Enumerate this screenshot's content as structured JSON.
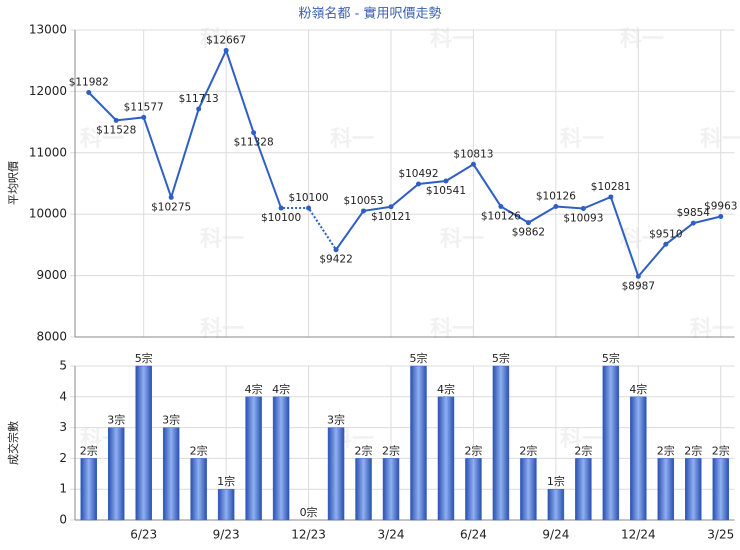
{
  "chart_data": [
    {
      "type": "line",
      "title": "粉嶺名都 - 實用呎價走勢",
      "y_label": "平均呎價",
      "watermark": "科一",
      "categories": [
        null,
        null,
        "6/23",
        null,
        null,
        "9/23",
        null,
        null,
        "12/23",
        null,
        null,
        "3/24",
        null,
        null,
        "6/24",
        null,
        null,
        "9/24",
        null,
        null,
        "12/24",
        null,
        null,
        "3/25"
      ],
      "values": [
        11982,
        11528,
        11577,
        10275,
        11713,
        12667,
        11328,
        10100,
        10100,
        9422,
        10053,
        10121,
        10492,
        10541,
        10813,
        10126,
        9862,
        10126,
        10093,
        10281,
        8987,
        9510,
        9854,
        9963
      ],
      "value_labels": [
        "$11982",
        "$11528",
        "$11577",
        "$10275",
        "$11713",
        "$12667",
        "$11328",
        "$10100",
        "$10100",
        "$9422",
        "$10053",
        "$10121",
        "$10492",
        "$10541",
        "$10813",
        "$10126",
        "$9862",
        "$10126",
        "$10093",
        "$10281",
        "$8987",
        "$9510",
        "$9854",
        "$9963"
      ],
      "color": "#2f5fc4",
      "ylim": [
        8000,
        13000
      ],
      "yticks": [
        8000,
        9000,
        10000,
        11000,
        12000,
        13000
      ],
      "grid": true
    },
    {
      "type": "bar",
      "y_label": "成交宗數",
      "categories": [
        null,
        null,
        "6/23",
        null,
        null,
        "9/23",
        null,
        null,
        "12/23",
        null,
        null,
        "3/24",
        null,
        null,
        "6/24",
        null,
        null,
        "9/24",
        null,
        null,
        "12/24",
        null,
        null,
        "3/25"
      ],
      "values": [
        2,
        3,
        5,
        3,
        2,
        1,
        4,
        4,
        0,
        3,
        2,
        2,
        5,
        4,
        2,
        5,
        2,
        1,
        2,
        5,
        4,
        2,
        2,
        2
      ],
      "value_labels": [
        "2宗",
        "3宗",
        "5宗",
        "3宗",
        "2宗",
        "1宗",
        "4宗",
        "4宗",
        "0宗",
        "3宗",
        "2宗",
        "2宗",
        "5宗",
        "4宗",
        "2宗",
        "5宗",
        "2宗",
        "1宗",
        "2宗",
        "5宗",
        "4宗",
        "2宗",
        "2宗",
        "2宗"
      ],
      "color": "#3b63c8",
      "ylim": [
        0,
        5
      ],
      "yticks": [
        0,
        1,
        2,
        3,
        4,
        5
      ],
      "grid": true
    }
  ]
}
